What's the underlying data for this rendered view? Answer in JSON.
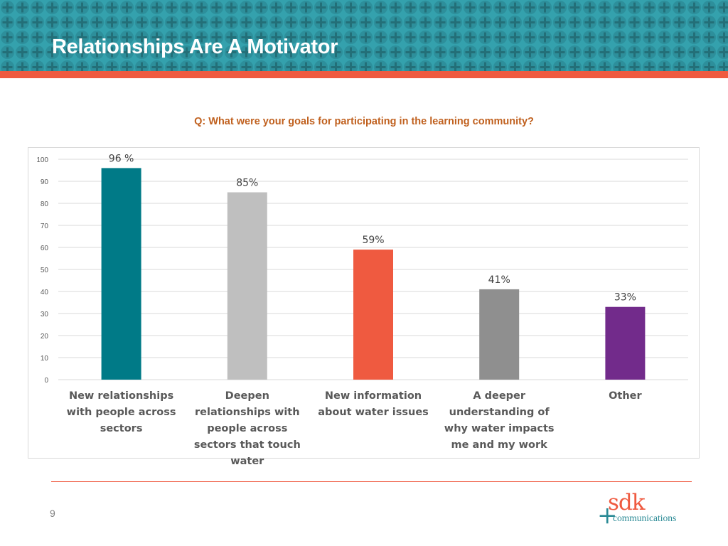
{
  "slide": {
    "title": "Relationships Are A Motivator",
    "question": "Q: What were your goals for participating in the learning community?",
    "page_number": "9"
  },
  "logo": {
    "mark": "+",
    "name": "sdk",
    "sub": "communications"
  },
  "colors": {
    "banner": "#34a1ad",
    "stripe": "#ef5a40",
    "question_text": "#c0601e",
    "bars": [
      "#007a87",
      "#bfbfbf",
      "#ef5a40",
      "#8f8f8f",
      "#722b8b"
    ]
  },
  "chart_data": {
    "type": "bar",
    "categories": [
      "New relationships with people across sectors",
      "Deepen relationships with people across sectors that touch water",
      "New information about water issues",
      "A deeper understanding of why water impacts me and my work",
      "Other"
    ],
    "values": [
      96,
      85,
      59,
      41,
      33
    ],
    "data_labels": [
      "96 %",
      "85%",
      "59%",
      "41%",
      "33%"
    ],
    "ylim": [
      0,
      100
    ],
    "yticks": [
      0,
      10,
      20,
      30,
      40,
      50,
      60,
      70,
      80,
      90,
      100
    ],
    "grid": true,
    "legend": "none"
  }
}
